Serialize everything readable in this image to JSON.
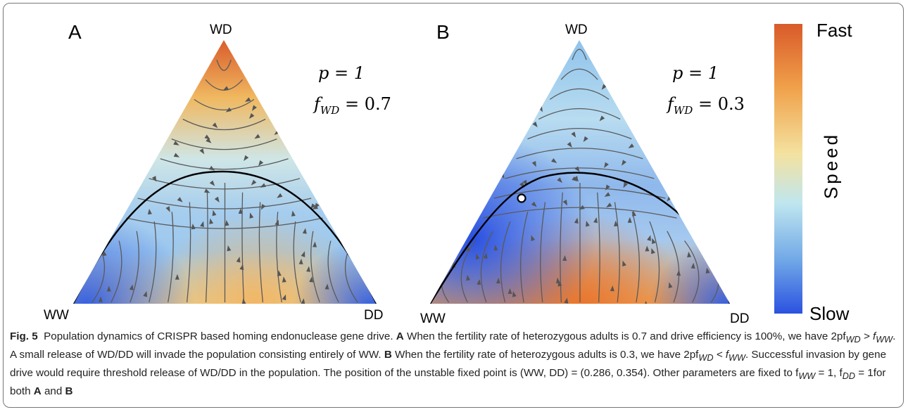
{
  "panels": [
    {
      "letter": "A",
      "top": "WD",
      "left": "WW",
      "right": "DD",
      "p": "p = 1",
      "f_label": "f",
      "f_sub": "WD",
      "f_value": "= 0.7"
    },
    {
      "letter": "B",
      "top": "WD",
      "left": "WW",
      "right": "DD",
      "p": "p = 1",
      "f_label": "f",
      "f_sub": "WD",
      "f_value": "= 0.3"
    }
  ],
  "colorbar": {
    "title": "Speed",
    "top_label": "Fast",
    "bottom_label": "Slow",
    "colors": [
      "#d95a2a",
      "#f0a14a",
      "#f4e2a0",
      "#bfe6ef",
      "#6fa6e6",
      "#2b52e0"
    ]
  },
  "caption": {
    "fig_label": "Fig. 5",
    "title": "Population dynamics of CRISPR based homing endonuclease gene drive.",
    "a_label": "A",
    "a_text_1": "When the fertility rate of heterozygous adults is 0.7 and drive efficiency is 100%, we have 2pf",
    "a_sub_1": "WD",
    "a_text_2": " > f",
    "a_sub_2": "WW",
    "a_text_3": ". A small release of WD/DD will invade the population consisting entirely of WW.",
    "b_label": "B",
    "b_text_1": "When the fertility rate of heterozygous adults is 0.3, we have 2pf",
    "b_sub_1": "WD",
    "b_text_2": " < f",
    "b_sub_2": "WW",
    "b_text_3": ". Successful invasion by gene drive would require threshold release of WD/DD in the population. The position of the unstable fixed point is (WW, DD) = (0.286, 0.354). Other parameters are fixed to f",
    "b_sub_3": "WW",
    "b_text_4": " = 1, f",
    "b_sub_4": "DD",
    "b_text_5": " = 1for both ",
    "end_a": "A",
    "end_and": " and ",
    "end_b": "B"
  }
}
